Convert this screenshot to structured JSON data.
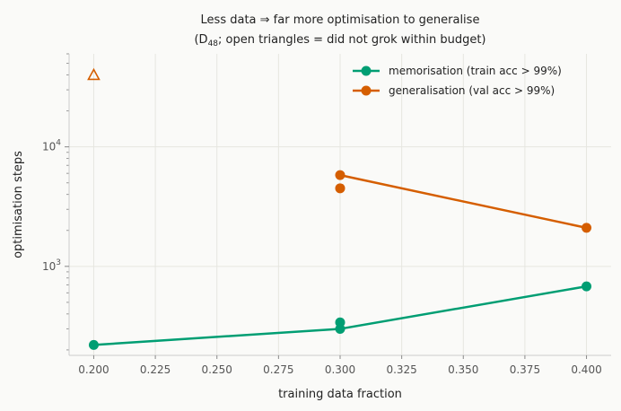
{
  "chart_data": {
    "type": "line",
    "title_line1": "Less data ⇒ far more optimisation to generalise",
    "title_line2_prefix": "(D",
    "title_line2_sub": "48",
    "title_line2_suffix": "; open triangles = did not grok within budget)",
    "xlabel": "training data fraction",
    "ylabel": "optimisation steps",
    "xlim": [
      0.19,
      0.41
    ],
    "ylim": [
      180,
      60000
    ],
    "yscale": "log",
    "grid": true,
    "legend_position": "top-right",
    "x_ticks": [
      "0.200",
      "0.225",
      "0.250",
      "0.275",
      "0.300",
      "0.325",
      "0.350",
      "0.375",
      "0.400"
    ],
    "y_ticks": [
      {
        "value": 1000,
        "base": "10",
        "exp": "3"
      },
      {
        "value": 10000,
        "base": "10",
        "exp": "4"
      }
    ],
    "series": [
      {
        "name": "memorisation (train acc > 99%)",
        "color": "#009e73",
        "line": [
          [
            0.2,
            220
          ],
          [
            0.3,
            300
          ],
          [
            0.4,
            680
          ]
        ],
        "points": [
          [
            0.2,
            220
          ],
          [
            0.3,
            300
          ],
          [
            0.3,
            340
          ],
          [
            0.4,
            680
          ]
        ]
      },
      {
        "name": "generalisation (val acc > 99%)",
        "color": "#d55e00",
        "line": [
          [
            0.3,
            5800
          ],
          [
            0.4,
            2100
          ]
        ],
        "points": [
          [
            0.3,
            5800
          ],
          [
            0.3,
            4500
          ],
          [
            0.4,
            2100
          ]
        ],
        "not_grokked": [
          [
            0.2,
            40000
          ]
        ]
      }
    ]
  }
}
